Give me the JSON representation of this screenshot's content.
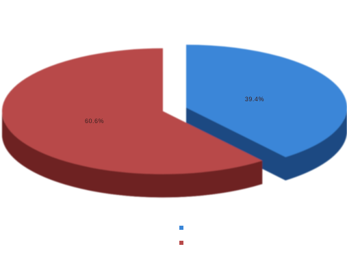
{
  "chart_data": {
    "type": "pie",
    "style": "3d-exploded",
    "title": "",
    "slices": [
      {
        "name": "",
        "value": 39.4,
        "label": "39.4%",
        "color": "#3a86d8",
        "side_color": "#1f4a82"
      },
      {
        "name": "",
        "value": 60.6,
        "label": "60.6%",
        "color": "#b84a4a",
        "side_color": "#6e2424"
      }
    ],
    "legend_position": "bottom-right"
  }
}
